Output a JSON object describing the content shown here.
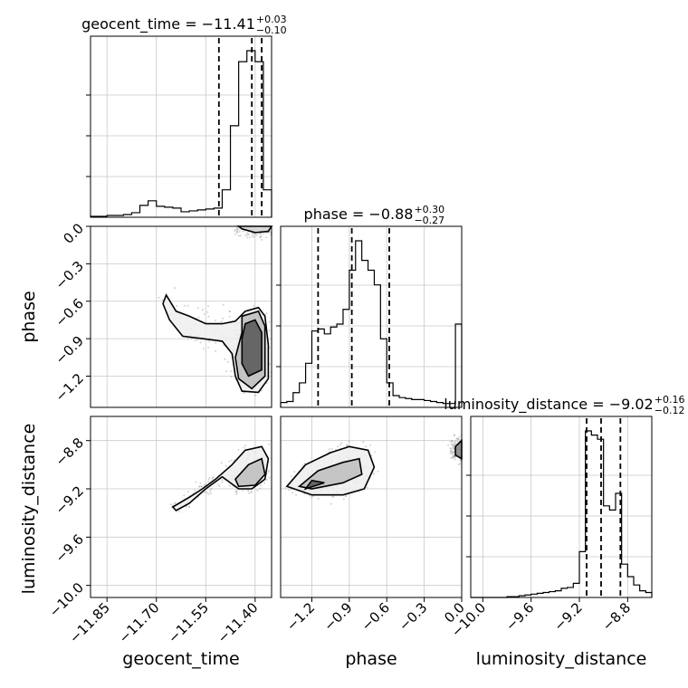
{
  "chart_data": {
    "type": "corner",
    "parameters": [
      "geocent_time",
      "phase",
      "luminosity_distance"
    ],
    "titles": [
      {
        "param": "geocent_time",
        "prefix": "geocent_time = −11.41",
        "upper": "+0.03",
        "lower": "−0.10"
      },
      {
        "param": "phase",
        "prefix": "phase = −0.88",
        "upper": "+0.30",
        "lower": "−0.27"
      },
      {
        "param": "luminosity_distance",
        "prefix": "luminosity_distance = −9.02",
        "upper": "+0.16",
        "lower": "−0.12"
      }
    ],
    "ranges": {
      "geocent_time": [
        -11.9,
        -11.35
      ],
      "phase": [
        -1.45,
        0.0
      ],
      "luminosity_distance": [
        -10.1,
        -8.6
      ]
    },
    "ticks": {
      "geocent_time": {
        "values": [
          -11.85,
          -11.7,
          -11.55,
          -11.4
        ],
        "labels": [
          "−11.85",
          "−11.70",
          "−11.55",
          "−11.40"
        ]
      },
      "phase": {
        "values": [
          -1.2,
          -0.9,
          -0.6,
          -0.3,
          0.0
        ],
        "labels": [
          "−1.2",
          "−0.9",
          "−0.6",
          "−0.3",
          "0.0"
        ]
      },
      "luminosity_distance": {
        "values": [
          -10.0,
          -9.6,
          -9.2,
          -8.8
        ],
        "labels": [
          "−10.0",
          "−9.6",
          "−9.2",
          "−8.8"
        ]
      }
    },
    "quantile_lines": {
      "geocent_time": [
        -11.51,
        -11.41,
        -11.38
      ],
      "phase": [
        -1.15,
        -0.88,
        -0.58
      ],
      "luminosity_distance": [
        -9.14,
        -9.02,
        -8.86
      ]
    },
    "histograms": {
      "geocent_time": {
        "edges": [
          -11.9,
          -11.875,
          -11.85,
          -11.825,
          -11.8,
          -11.775,
          -11.75,
          -11.725,
          -11.7,
          -11.675,
          -11.65,
          -11.625,
          -11.6,
          -11.575,
          -11.55,
          -11.525,
          -11.5,
          -11.475,
          -11.45,
          -11.425,
          -11.4,
          -11.375,
          -11.35
        ],
        "counts": [
          1,
          1,
          2,
          2,
          3,
          5,
          13,
          18,
          12,
          11,
          10,
          6,
          7,
          8,
          9,
          10,
          30,
          100,
          170,
          182,
          170,
          30
        ]
      },
      "phase": {
        "edges": [
          -1.45,
          -1.4,
          -1.35,
          -1.3,
          -1.25,
          -1.2,
          -1.15,
          -1.1,
          -1.05,
          -1.0,
          -0.95,
          -0.9,
          -0.85,
          -0.8,
          -0.75,
          -0.7,
          -0.65,
          -0.6,
          -0.55,
          -0.5,
          -0.45,
          -0.4,
          -0.35,
          -0.3,
          -0.25,
          -0.2,
          -0.15,
          -0.1,
          -0.05,
          0.0
        ],
        "counts": [
          5,
          6,
          15,
          25,
          45,
          78,
          80,
          75,
          82,
          85,
          100,
          140,
          170,
          150,
          140,
          125,
          70,
          25,
          12,
          10,
          9,
          8,
          8,
          7,
          6,
          5,
          4,
          4,
          85
        ]
      },
      "luminosity_distance": {
        "edges": [
          -10.1,
          -10.05,
          -10.0,
          -9.95,
          -9.9,
          -9.85,
          -9.8,
          -9.75,
          -9.7,
          -9.65,
          -9.6,
          -9.55,
          -9.5,
          -9.45,
          -9.4,
          -9.35,
          -9.3,
          -9.25,
          -9.2,
          -9.15,
          -9.1,
          -9.05,
          -9.0,
          -8.95,
          -8.9,
          -8.85,
          -8.8,
          -8.75,
          -8.7,
          -8.65,
          -8.6
        ],
        "counts": [
          0,
          0,
          0,
          0,
          0,
          0,
          1,
          1,
          2,
          3,
          4,
          5,
          6,
          7,
          8,
          11,
          12,
          17,
          55,
          200,
          195,
          190,
          110,
          105,
          125,
          40,
          25,
          15,
          8,
          6
        ]
      }
    },
    "contours_2d": {
      "phase_vs_geocent_time": [
        {
          "level": "outer",
          "points": [
            [
              -11.67,
              -0.55
            ],
            [
              -11.64,
              -0.68
            ],
            [
              -11.6,
              -0.72
            ],
            [
              -11.55,
              -0.78
            ],
            [
              -11.5,
              -0.78
            ],
            [
              -11.46,
              -0.76
            ],
            [
              -11.43,
              -0.68
            ],
            [
              -11.39,
              -0.65
            ],
            [
              -11.37,
              -0.72
            ],
            [
              -11.36,
              -0.95
            ],
            [
              -11.36,
              -1.22
            ],
            [
              -11.39,
              -1.33
            ],
            [
              -11.44,
              -1.32
            ],
            [
              -11.46,
              -1.2
            ],
            [
              -11.47,
              -1.02
            ],
            [
              -11.5,
              -0.92
            ],
            [
              -11.56,
              -0.9
            ],
            [
              -11.62,
              -0.88
            ],
            [
              -11.66,
              -0.75
            ],
            [
              -11.68,
              -0.62
            ]
          ]
        },
        {
          "level": "middle",
          "points": [
            [
              -11.44,
              -0.72
            ],
            [
              -11.39,
              -0.68
            ],
            [
              -11.37,
              -0.8
            ],
            [
              -11.37,
              -1.2
            ],
            [
              -11.41,
              -1.3
            ],
            [
              -11.45,
              -1.22
            ],
            [
              -11.46,
              -1.05
            ],
            [
              -11.44,
              -0.85
            ]
          ]
        },
        {
          "level": "inner",
          "points": [
            [
              -11.43,
              -0.78
            ],
            [
              -11.4,
              -0.75
            ],
            [
              -11.38,
              -0.85
            ],
            [
              -11.38,
              -1.15
            ],
            [
              -11.42,
              -1.2
            ],
            [
              -11.44,
              -1.1
            ],
            [
              -11.44,
              -0.9
            ]
          ]
        },
        {
          "level": "top",
          "points": [
            [
              -11.44,
              -0.02
            ],
            [
              -11.4,
              -0.05
            ],
            [
              -11.36,
              -0.04
            ],
            [
              -11.35,
              0.0
            ],
            [
              -11.45,
              0.0
            ]
          ]
        }
      ],
      "luminosity_distance_vs_geocent_time": [
        {
          "level": "outer",
          "points": [
            [
              -11.65,
              -9.35
            ],
            [
              -11.6,
              -9.27
            ],
            [
              -11.56,
              -9.2
            ],
            [
              -11.52,
              -9.12
            ],
            [
              -11.47,
              -9.0
            ],
            [
              -11.43,
              -8.88
            ],
            [
              -11.38,
              -8.85
            ],
            [
              -11.36,
              -8.95
            ],
            [
              -11.37,
              -9.12
            ],
            [
              -11.41,
              -9.2
            ],
            [
              -11.45,
              -9.2
            ],
            [
              -11.5,
              -9.1
            ],
            [
              -11.55,
              -9.2
            ],
            [
              -11.6,
              -9.32
            ],
            [
              -11.64,
              -9.38
            ]
          ]
        },
        {
          "level": "middle",
          "points": [
            [
              -11.46,
              -9.12
            ],
            [
              -11.42,
              -9.0
            ],
            [
              -11.38,
              -8.95
            ],
            [
              -11.37,
              -9.08
            ],
            [
              -11.4,
              -9.17
            ],
            [
              -11.45,
              -9.18
            ]
          ]
        }
      ],
      "luminosity_distance_vs_phase": [
        {
          "level": "outer",
          "points": [
            [
              -1.4,
              -9.18
            ],
            [
              -1.25,
              -9.0
            ],
            [
              -1.05,
              -8.9
            ],
            [
              -0.9,
              -8.85
            ],
            [
              -0.75,
              -8.88
            ],
            [
              -0.7,
              -9.02
            ],
            [
              -0.78,
              -9.2
            ],
            [
              -0.95,
              -9.25
            ],
            [
              -1.2,
              -9.25
            ]
          ]
        },
        {
          "level": "middle",
          "points": [
            [
              -1.3,
              -9.18
            ],
            [
              -1.15,
              -9.05
            ],
            [
              -0.95,
              -8.98
            ],
            [
              -0.82,
              -8.95
            ],
            [
              -0.8,
              -9.08
            ],
            [
              -0.95,
              -9.15
            ],
            [
              -1.2,
              -9.2
            ]
          ]
        },
        {
          "level": "inner",
          "points": [
            [
              -1.25,
              -9.2
            ],
            [
              -1.1,
              -9.15
            ],
            [
              -1.2,
              -9.13
            ]
          ]
        },
        {
          "level": "edge",
          "points": [
            [
              -0.05,
              -8.85
            ],
            [
              0.0,
              -8.8
            ],
            [
              0.0,
              -8.95
            ],
            [
              -0.05,
              -8.92
            ]
          ]
        }
      ]
    },
    "grid": true
  }
}
